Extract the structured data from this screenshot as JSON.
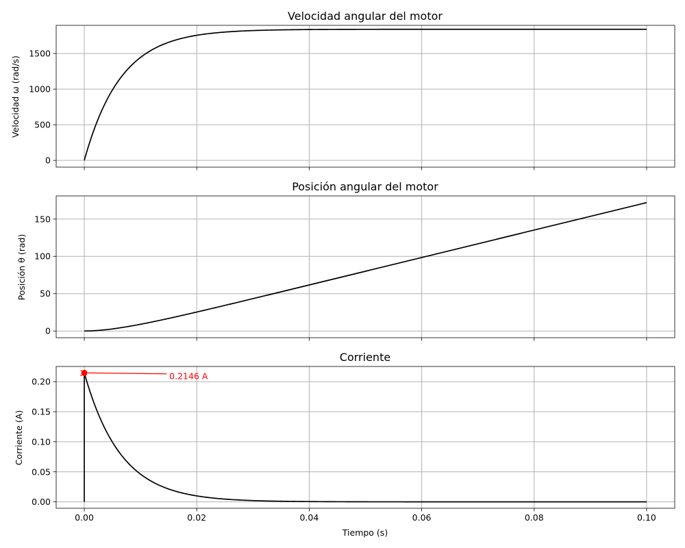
{
  "chart_data": [
    {
      "type": "line",
      "title": "Velocidad angular del motor",
      "xlabel": "",
      "ylabel": "Velocidad ω (rad/s)",
      "xlim": [
        -0.005,
        0.105
      ],
      "ylim": [
        -95,
        1895
      ],
      "x_ticks": [
        0.0,
        0.02,
        0.04,
        0.06,
        0.08,
        0.1
      ],
      "x_tick_labels_visible": false,
      "y_ticks": [
        0,
        500,
        1000,
        1500
      ],
      "y_tick_labels": [
        "0",
        "500",
        "1000",
        "1500"
      ],
      "grid": true,
      "color": "#000000",
      "model": {
        "kind": "first_order_rise",
        "final_value": 1840,
        "time_constant": 0.0065
      },
      "points": [
        {
          "x": 0.0,
          "y": 0
        },
        {
          "x": 0.005,
          "y": 990
        },
        {
          "x": 0.01,
          "y": 1445
        },
        {
          "x": 0.015,
          "y": 1655
        },
        {
          "x": 0.02,
          "y": 1750
        },
        {
          "x": 0.03,
          "y": 1820
        },
        {
          "x": 0.04,
          "y": 1835
        },
        {
          "x": 0.06,
          "y": 1840
        },
        {
          "x": 0.08,
          "y": 1840
        },
        {
          "x": 0.1,
          "y": 1840
        }
      ]
    },
    {
      "type": "line",
      "title": "Posición angular del motor",
      "xlabel": "",
      "ylabel": "Posición θ (rad)",
      "xlim": [
        -0.005,
        0.105
      ],
      "ylim": [
        -9,
        181
      ],
      "x_ticks": [
        0.0,
        0.02,
        0.04,
        0.06,
        0.08,
        0.1
      ],
      "x_tick_labels_visible": false,
      "y_ticks": [
        0,
        50,
        100,
        150
      ],
      "y_tick_labels": [
        "0",
        "50",
        "100",
        "150"
      ],
      "grid": true,
      "color": "#000000",
      "model": {
        "kind": "integral_of_first_order",
        "final_slope": 1840,
        "time_constant": 0.0065
      },
      "points": [
        {
          "x": 0.0,
          "y": 0
        },
        {
          "x": 0.01,
          "y": 10
        },
        {
          "x": 0.02,
          "y": 25
        },
        {
          "x": 0.04,
          "y": 62
        },
        {
          "x": 0.06,
          "y": 98
        },
        {
          "x": 0.08,
          "y": 135
        },
        {
          "x": 0.1,
          "y": 172
        }
      ]
    },
    {
      "type": "line",
      "title": "Corriente",
      "xlabel": "Tiempo (s)",
      "ylabel": "Corriente (A)",
      "xlim": [
        -0.005,
        0.105
      ],
      "ylim": [
        -0.0107,
        0.2253
      ],
      "x_ticks": [
        0.0,
        0.02,
        0.04,
        0.06,
        0.08,
        0.1
      ],
      "x_tick_labels": [
        "0.00",
        "0.02",
        "0.04",
        "0.06",
        "0.08",
        "0.10"
      ],
      "y_ticks": [
        0.0,
        0.05,
        0.1,
        0.15,
        0.2
      ],
      "y_tick_labels": [
        "0.00",
        "0.05",
        "0.10",
        "0.15",
        "0.20"
      ],
      "grid": true,
      "color": "#000000",
      "model": {
        "kind": "spike_then_decay",
        "peak_value": 0.2146,
        "time_constant": 0.0065
      },
      "points": [
        {
          "x": 0.0,
          "y": 0.0
        },
        {
          "x": 0.0,
          "y": 0.2146
        },
        {
          "x": 0.005,
          "y": 0.1
        },
        {
          "x": 0.01,
          "y": 0.046
        },
        {
          "x": 0.02,
          "y": 0.01
        },
        {
          "x": 0.03,
          "y": 0.002
        },
        {
          "x": 0.04,
          "y": 0.0005
        },
        {
          "x": 0.06,
          "y": 0.0
        },
        {
          "x": 0.1,
          "y": 0.0
        }
      ],
      "annotation": {
        "text": "0.2146 A",
        "point": {
          "x": 0.0,
          "y": 0.2146
        },
        "text_position": {
          "x": 0.015,
          "y": 0.2085
        },
        "color": "#ff0000"
      }
    }
  ]
}
